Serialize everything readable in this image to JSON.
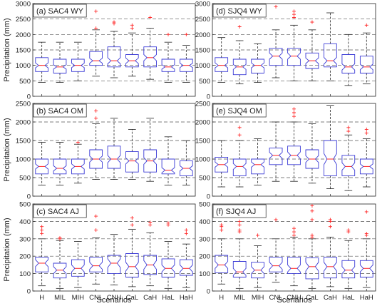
{
  "chart_data": {
    "type": "boxplot",
    "xlabel": "Scenarios",
    "ylabel": "Precipitation (mm)",
    "categories": [
      "H",
      "MIL",
      "MIH",
      "CNL",
      "CNH",
      "CaL",
      "CaH",
      "HaL",
      "HaH"
    ],
    "colors": {
      "box": "#3b3bd6",
      "median": "#ff2020",
      "whisker": "#222222",
      "outlier": "#ff2a2a",
      "grid": "#555555"
    },
    "panels": [
      {
        "title": "(a) SAC4 WY",
        "ylim": [
          0,
          3000
        ],
        "yticks": [
          0,
          500,
          1000,
          1500,
          2000,
          2500,
          3000
        ],
        "yticklabels": [
          "0",
          "500",
          "1000",
          "1500",
          "2000",
          "2500",
          "3000"
        ],
        "boxes": [
          {
            "min": 450,
            "q1": 800,
            "median": 1000,
            "q3": 1250,
            "max": 1750,
            "notch": [
              920,
              1080
            ],
            "outliers": []
          },
          {
            "min": 450,
            "q1": 750,
            "median": 950,
            "q3": 1200,
            "max": 1750,
            "notch": [
              880,
              1020
            ],
            "outliers": []
          },
          {
            "min": 500,
            "q1": 800,
            "median": 1000,
            "q3": 1200,
            "max": 1750,
            "notch": [
              930,
              1070
            ],
            "outliers": []
          },
          {
            "min": 650,
            "q1": 1000,
            "median": 1150,
            "q3": 1450,
            "max": 2150,
            "notch": [
              1070,
              1230
            ],
            "outliers": [
              2200,
              2750
            ]
          },
          {
            "min": 600,
            "q1": 950,
            "median": 1150,
            "q3": 1600,
            "max": 2100,
            "notch": [
              1050,
              1250
            ],
            "outliers": [
              2350,
              2400
            ]
          },
          {
            "min": 650,
            "q1": 950,
            "median": 1150,
            "q3": 1350,
            "max": 2050,
            "notch": [
              1060,
              1240
            ],
            "outliers": [
              2200,
              2300
            ]
          },
          {
            "min": 550,
            "q1": 950,
            "median": 1250,
            "q3": 1600,
            "max": 2200,
            "notch": [
              1150,
              1350
            ],
            "outliers": [
              2550
            ]
          },
          {
            "min": 450,
            "q1": 800,
            "median": 950,
            "q3": 1200,
            "max": 1750,
            "notch": [
              880,
              1020
            ],
            "outliers": [
              2000
            ]
          },
          {
            "min": 450,
            "q1": 800,
            "median": 1000,
            "q3": 1200,
            "max": 1650,
            "notch": [
              930,
              1070
            ],
            "outliers": [
              2000
            ]
          }
        ]
      },
      {
        "title": "(d) SJQ4 WY",
        "ylim": [
          0,
          3000
        ],
        "yticks": [
          0,
          500,
          1000,
          1500,
          2000,
          2500,
          3000
        ],
        "yticklabels": [
          "0",
          "500",
          "1000",
          "1500",
          "2000",
          "2500",
          "3000"
        ],
        "boxes": [
          {
            "min": 450,
            "q1": 800,
            "median": 1000,
            "q3": 1250,
            "max": 1900,
            "notch": [
              920,
              1080
            ],
            "outliers": []
          },
          {
            "min": 400,
            "q1": 700,
            "median": 950,
            "q3": 1200,
            "max": 1800,
            "notch": [
              870,
              1030
            ],
            "outliers": [
              2250
            ]
          },
          {
            "min": 450,
            "q1": 750,
            "median": 1000,
            "q3": 1200,
            "max": 1700,
            "notch": [
              920,
              1080
            ],
            "outliers": []
          },
          {
            "min": 600,
            "q1": 1000,
            "median": 1300,
            "q3": 1550,
            "max": 2150,
            "notch": [
              1200,
              1400
            ],
            "outliers": [
              2900
            ]
          },
          {
            "min": 500,
            "q1": 1000,
            "median": 1300,
            "q3": 1550,
            "max": 2300,
            "notch": [
              1200,
              1400
            ],
            "outliers": [
              2550,
              2650,
              2750
            ]
          },
          {
            "min": 500,
            "q1": 900,
            "median": 1150,
            "q3": 1400,
            "max": 2150,
            "notch": [
              1060,
              1240
            ],
            "outliers": [
              2400
            ]
          },
          {
            "min": 500,
            "q1": 950,
            "median": 1150,
            "q3": 1700,
            "max": 2700,
            "notch": [
              1040,
              1260
            ],
            "outliers": []
          },
          {
            "min": 350,
            "q1": 750,
            "median": 950,
            "q3": 1350,
            "max": 2000,
            "notch": [
              850,
              1050
            ],
            "outliers": []
          },
          {
            "min": 400,
            "q1": 750,
            "median": 950,
            "q3": 1300,
            "max": 2050,
            "notch": [
              860,
              1040
            ],
            "outliers": [
              2300
            ]
          }
        ]
      },
      {
        "title": "(b) SAC4 OM",
        "ylim": [
          0,
          2500
        ],
        "yticks": [
          0,
          500,
          1000,
          1500,
          2000,
          2500
        ],
        "yticklabels": [
          "0",
          "500",
          "1000",
          "1500",
          "2000",
          "2500"
        ],
        "boxes": [
          {
            "min": 300,
            "q1": 600,
            "median": 800,
            "q3": 1000,
            "max": 1450,
            "notch": [
              730,
              870
            ],
            "outliers": []
          },
          {
            "min": 300,
            "q1": 600,
            "median": 750,
            "q3": 1000,
            "max": 1450,
            "notch": [
              680,
              820
            ],
            "outliers": []
          },
          {
            "min": 350,
            "q1": 600,
            "median": 800,
            "q3": 1000,
            "max": 1400,
            "notch": [
              730,
              870
            ],
            "outliers": [
              1450
            ]
          },
          {
            "min": 450,
            "q1": 750,
            "median": 1000,
            "q3": 1250,
            "max": 1950,
            "notch": [
              920,
              1080
            ],
            "outliers": [
              2100,
              2300
            ]
          },
          {
            "min": 450,
            "q1": 750,
            "median": 1000,
            "q3": 1350,
            "max": 2100,
            "notch": [
              900,
              1100
            ],
            "outliers": []
          },
          {
            "min": 450,
            "q1": 650,
            "median": 950,
            "q3": 1200,
            "max": 1800,
            "notch": [
              870,
              1030
            ],
            "outliers": []
          },
          {
            "min": 400,
            "q1": 650,
            "median": 950,
            "q3": 1250,
            "max": 2100,
            "notch": [
              860,
              1040
            ],
            "outliers": []
          },
          {
            "min": 300,
            "q1": 600,
            "median": 700,
            "q3": 1000,
            "max": 1600,
            "notch": [
              630,
              770
            ],
            "outliers": []
          },
          {
            "min": 300,
            "q1": 550,
            "median": 750,
            "q3": 950,
            "max": 1500,
            "notch": [
              680,
              820
            ],
            "outliers": []
          }
        ]
      },
      {
        "title": "(e) SJQ4 OM",
        "ylim": [
          0,
          2500
        ],
        "yticks": [
          0,
          500,
          1000,
          1500,
          2000,
          2500
        ],
        "yticklabels": [
          "0",
          "500",
          "1000",
          "1500",
          "2000",
          "2500"
        ],
        "boxes": [
          {
            "min": 250,
            "q1": 650,
            "median": 850,
            "q3": 1050,
            "max": 1500,
            "notch": [
              780,
              920
            ],
            "outliers": []
          },
          {
            "min": 250,
            "q1": 550,
            "median": 800,
            "q3": 1000,
            "max": 1500,
            "notch": [
              720,
              880
            ],
            "outliers": [
              1650,
              1850
            ]
          },
          {
            "min": 300,
            "q1": 600,
            "median": 850,
            "q3": 1000,
            "max": 1550,
            "notch": [
              780,
              920
            ],
            "outliers": []
          },
          {
            "min": 400,
            "q1": 850,
            "median": 1100,
            "q3": 1300,
            "max": 2000,
            "notch": [
              1020,
              1180
            ],
            "outliers": []
          },
          {
            "min": 400,
            "q1": 850,
            "median": 1100,
            "q3": 1350,
            "max": 2000,
            "notch": [
              1010,
              1190
            ],
            "outliers": [
              2150,
              2250,
              2350
            ]
          },
          {
            "min": 350,
            "q1": 750,
            "median": 1000,
            "q3": 1250,
            "max": 1950,
            "notch": [
              910,
              1090
            ],
            "outliers": []
          },
          {
            "min": 200,
            "q1": 550,
            "median": 1000,
            "q3": 1500,
            "max": 2450,
            "notch": [
              850,
              1150
            ],
            "outliers": []
          },
          {
            "min": 150,
            "q1": 550,
            "median": 800,
            "q3": 1100,
            "max": 1650,
            "notch": [
              700,
              900
            ],
            "outliers": [
              1750,
              1850
            ]
          },
          {
            "min": 250,
            "q1": 600,
            "median": 800,
            "q3": 1000,
            "max": 1550,
            "notch": [
              730,
              870
            ],
            "outliers": [
              1700,
              1800
            ]
          }
        ]
      },
      {
        "title": "(c) SAC4 AJ",
        "ylim": [
          0,
          500
        ],
        "yticks": [
          0,
          100,
          200,
          300,
          400,
          500
        ],
        "yticklabels": [
          "0",
          "100",
          "200",
          "300",
          "400",
          "500"
        ],
        "boxes": [
          {
            "min": 30,
            "q1": 110,
            "median": 160,
            "q3": 195,
            "max": 300,
            "notch": [
              140,
              180
            ],
            "outliers": [
              330,
              350,
              370
            ]
          },
          {
            "min": 15,
            "q1": 75,
            "median": 120,
            "q3": 160,
            "max": 290,
            "notch": [
              100,
              140
            ],
            "outliers": [
              300,
              305
            ]
          },
          {
            "min": 20,
            "q1": 85,
            "median": 130,
            "q3": 180,
            "max": 285,
            "notch": [
              110,
              150
            ],
            "outliers": []
          },
          {
            "min": 40,
            "q1": 110,
            "median": 145,
            "q3": 195,
            "max": 305,
            "notch": [
              125,
              165
            ],
            "outliers": [
              350,
              430
            ]
          },
          {
            "min": 35,
            "q1": 100,
            "median": 160,
            "q3": 205,
            "max": 325,
            "notch": [
              135,
              185
            ],
            "outliers": []
          },
          {
            "min": 25,
            "q1": 80,
            "median": 140,
            "q3": 215,
            "max": 355,
            "notch": [
              115,
              165
            ],
            "outliers": [
              380,
              420
            ]
          },
          {
            "min": 30,
            "q1": 95,
            "median": 150,
            "q3": 205,
            "max": 335,
            "notch": [
              125,
              175
            ],
            "outliers": [
              380,
              395
            ]
          },
          {
            "min": 15,
            "q1": 80,
            "median": 130,
            "q3": 185,
            "max": 285,
            "notch": [
              110,
              150
            ],
            "outliers": [
              380,
              390
            ]
          },
          {
            "min": 20,
            "q1": 90,
            "median": 130,
            "q3": 180,
            "max": 270,
            "notch": [
              110,
              150
            ],
            "outliers": [
              330,
              350
            ]
          }
        ]
      },
      {
        "title": "(f) SJQ4 AJ",
        "ylim": [
          0,
          500
        ],
        "yticks": [
          0,
          100,
          200,
          300,
          400,
          500
        ],
        "yticklabels": [
          "0",
          "100",
          "200",
          "300",
          "400",
          "500"
        ],
        "boxes": [
          {
            "min": 40,
            "q1": 105,
            "median": 150,
            "q3": 205,
            "max": 300,
            "notch": [
              130,
              170
            ],
            "outliers": [
              350,
              370,
              380
            ]
          },
          {
            "min": 15,
            "q1": 80,
            "median": 110,
            "q3": 170,
            "max": 300,
            "notch": [
              90,
              130
            ],
            "outliers": [
              340,
              350,
              380,
              400
            ]
          },
          {
            "min": 20,
            "q1": 75,
            "median": 120,
            "q3": 165,
            "max": 260,
            "notch": [
              100,
              140
            ],
            "outliers": [
              320
            ]
          },
          {
            "min": 50,
            "q1": 110,
            "median": 145,
            "q3": 195,
            "max": 300,
            "notch": [
              125,
              165
            ],
            "outliers": [
              410
            ]
          },
          {
            "min": 30,
            "q1": 100,
            "median": 130,
            "q3": 195,
            "max": 310,
            "notch": [
              110,
              150
            ],
            "outliers": [
              320,
              340,
              360
            ]
          },
          {
            "min": 15,
            "q1": 70,
            "median": 140,
            "q3": 190,
            "max": 300,
            "notch": [
              115,
              165
            ],
            "outliers": [
              310,
              320,
              410,
              460,
              490
            ]
          },
          {
            "min": 25,
            "q1": 75,
            "median": 140,
            "q3": 195,
            "max": 310,
            "notch": [
              115,
              165
            ],
            "outliers": [
              370,
              400,
              410
            ]
          },
          {
            "min": 15,
            "q1": 75,
            "median": 120,
            "q3": 175,
            "max": 290,
            "notch": [
              100,
              140
            ],
            "outliers": [
              340,
              350
            ]
          },
          {
            "min": 20,
            "q1": 80,
            "median": 130,
            "q3": 175,
            "max": 300,
            "notch": [
              110,
              150
            ],
            "outliers": [
              320,
              330,
              455
            ]
          }
        ]
      }
    ]
  }
}
